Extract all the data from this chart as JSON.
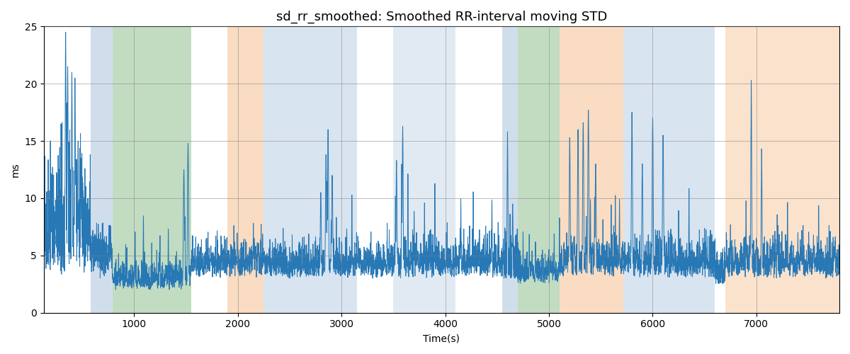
{
  "title": "sd_rr_smoothed: Smoothed RR-interval moving STD",
  "xlabel": "Time(s)",
  "ylabel": "ms",
  "ylim": [
    0,
    25
  ],
  "xlim": [
    130,
    7800
  ],
  "grid": true,
  "line_color": "#2878b5",
  "line_width": 0.7,
  "background_color": "#ffffff",
  "bands": [
    {
      "xmin": 580,
      "xmax": 790,
      "color": "#aac4de",
      "alpha": 0.55
    },
    {
      "xmin": 790,
      "xmax": 1550,
      "color": "#90c090",
      "alpha": 0.55
    },
    {
      "xmin": 1900,
      "xmax": 2250,
      "color": "#f5c090",
      "alpha": 0.55
    },
    {
      "xmin": 2250,
      "xmax": 3150,
      "color": "#aac4de",
      "alpha": 0.45
    },
    {
      "xmin": 3500,
      "xmax": 4100,
      "color": "#aac4de",
      "alpha": 0.35
    },
    {
      "xmin": 4550,
      "xmax": 4700,
      "color": "#aac4de",
      "alpha": 0.55
    },
    {
      "xmin": 4700,
      "xmax": 5100,
      "color": "#90c090",
      "alpha": 0.55
    },
    {
      "xmin": 5100,
      "xmax": 5720,
      "color": "#f5c090",
      "alpha": 0.55
    },
    {
      "xmin": 5720,
      "xmax": 6600,
      "color": "#aac4de",
      "alpha": 0.45
    },
    {
      "xmin": 6700,
      "xmax": 7800,
      "color": "#f5c090",
      "alpha": 0.45
    }
  ],
  "title_fontsize": 13,
  "xticks": [
    1000,
    2000,
    3000,
    4000,
    5000,
    6000,
    7000
  ]
}
